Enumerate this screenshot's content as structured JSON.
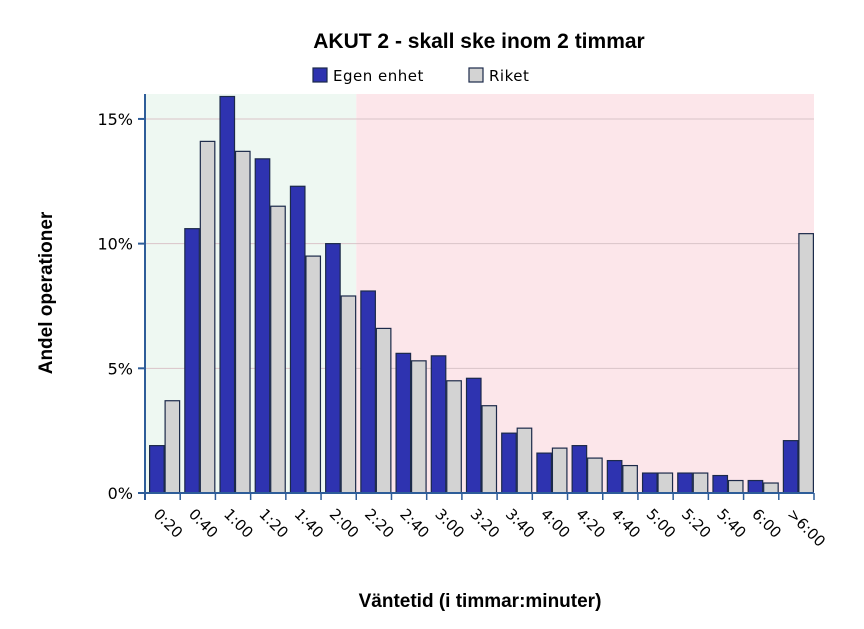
{
  "chart_data": {
    "type": "bar",
    "title": "AKUT 2 - skall ske inom 2 timmar",
    "xlabel": "Väntetid (i timmar:minuter)",
    "ylabel": "Andel operationer",
    "ylim": [
      0,
      16
    ],
    "yticks": [
      {
        "value": 0,
        "label": "0%"
      },
      {
        "value": 5,
        "label": "5%"
      },
      {
        "value": 10,
        "label": "10%"
      },
      {
        "value": 15,
        "label": "15%"
      }
    ],
    "grid": true,
    "legend_position": "top",
    "target_category": "2:00",
    "categories": [
      "0:20",
      "0:40",
      "1:00",
      "1:20",
      "1:40",
      "2:00",
      "2:20",
      "2:40",
      "3:00",
      "3:20",
      "3:40",
      "4:00",
      "4:20",
      "4:40",
      "5:00",
      "5:20",
      "5:40",
      "6:00",
      ">6:00"
    ],
    "series": [
      {
        "name": "Egen enhet",
        "color": "#2e33b0",
        "values": [
          1.9,
          10.6,
          15.9,
          13.4,
          12.3,
          10.0,
          8.1,
          5.6,
          5.5,
          4.6,
          2.4,
          1.6,
          1.9,
          1.3,
          0.8,
          0.8,
          0.7,
          0.5,
          2.1
        ]
      },
      {
        "name": "Riket",
        "color": "#d3d3d3",
        "values": [
          3.7,
          14.1,
          13.7,
          11.5,
          9.5,
          7.9,
          6.6,
          5.3,
          4.5,
          3.5,
          2.6,
          1.8,
          1.4,
          1.1,
          0.8,
          0.8,
          0.5,
          0.4,
          10.4
        ]
      }
    ]
  },
  "colors": {
    "within_target_bg": "#eef8f2",
    "beyond_target_bg": "#fce6ea",
    "axis": "#2e5d99",
    "bar_outline": "#1c2a4a",
    "gridline": "#d9c4c8"
  }
}
